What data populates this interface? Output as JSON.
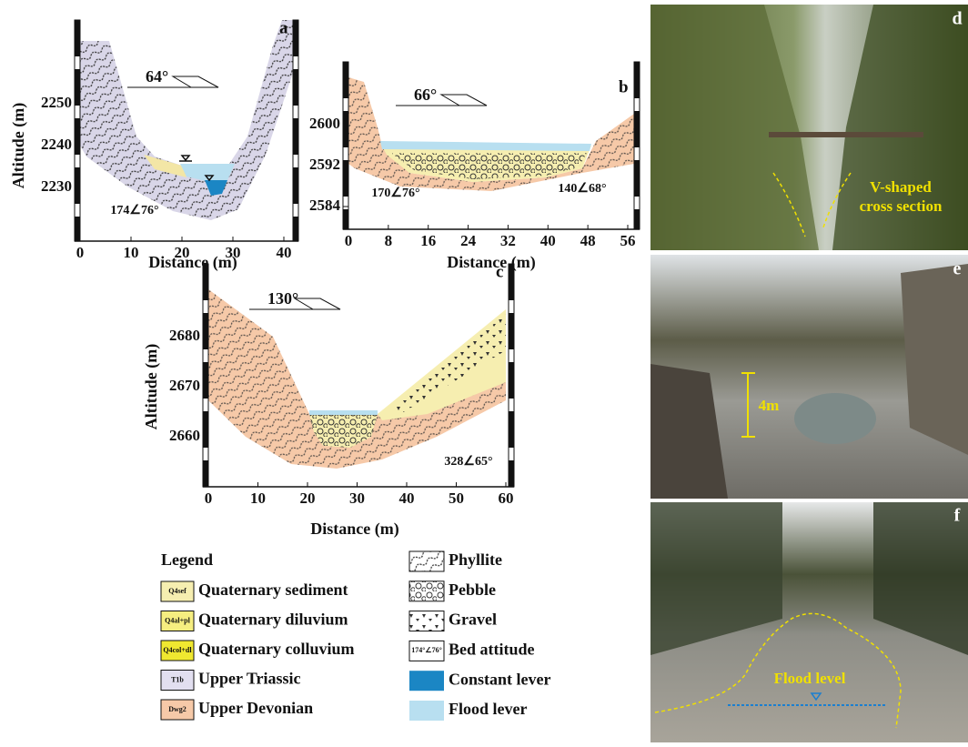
{
  "panels": [
    {
      "label": "a",
      "x_label": "Distance (m)",
      "y_label": "Altitude (m)",
      "xticks": [
        0,
        10,
        20,
        30,
        40
      ],
      "yticks": [
        2230,
        2240,
        2250
      ],
      "dip_direction": "64°",
      "bed_attitudes": [
        "174∠76°"
      ]
    },
    {
      "label": "b",
      "x_label": "Distance (m)",
      "xticks": [
        0,
        8,
        16,
        24,
        32,
        40,
        48,
        56
      ],
      "yticks": [
        2584,
        2592,
        2600
      ],
      "dip_direction": "66°",
      "bed_attitudes": [
        "170∠76°",
        "140∠68°"
      ]
    },
    {
      "label": "c",
      "x_label": "Distance (m)",
      "y_label": "Altitude (m)",
      "xticks": [
        0,
        10,
        20,
        30,
        40,
        50,
        60
      ],
      "yticks": [
        2660,
        2670,
        2680
      ],
      "dip_direction": "130°",
      "bed_attitudes": [
        "328∠65°"
      ]
    }
  ],
  "legend": {
    "title": "Legend",
    "strata": [
      {
        "code": "Q4sef",
        "label": "Quaternary sediment"
      },
      {
        "code": "Q4al+pl",
        "label": "Quaternary diluvium"
      },
      {
        "code": "Q4col+dl",
        "label": "Quaternary colluvium"
      },
      {
        "code": "T1b",
        "label": "Upper Triassic"
      },
      {
        "code": "Dwg2",
        "label": "Upper Devonian"
      }
    ],
    "symbols": [
      {
        "label": "Phyllite"
      },
      {
        "label": "Pebble"
      },
      {
        "label": "Gravel"
      },
      {
        "code": "174°∠76°",
        "label": "Bed attitude"
      },
      {
        "label": "Constant lever"
      },
      {
        "label": "Flood lever"
      }
    ]
  },
  "photos": [
    {
      "label": "d",
      "annotation": [
        "V-shaped",
        "cross section"
      ]
    },
    {
      "label": "e",
      "annotation": [
        "4m"
      ]
    },
    {
      "label": "f",
      "annotation": [
        "Flood level"
      ]
    }
  ]
}
